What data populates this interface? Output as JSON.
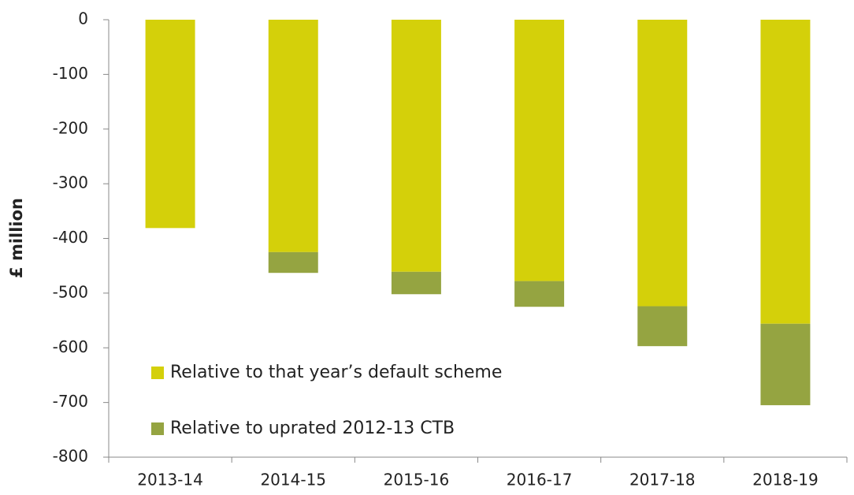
{
  "chart_data": {
    "type": "stacked_bar",
    "y_label": "£ million",
    "categories": [
      "2013-14",
      "2014-15",
      "2015-16",
      "2016-17",
      "2017-18",
      "2018-19"
    ],
    "series": [
      {
        "name": "Relative to that year’s default scheme",
        "color": "#d4d00a",
        "values": [
          -381,
          -425,
          -461,
          -478,
          -524,
          -556
        ]
      },
      {
        "name": "Relative to uprated 2012-13 CTB",
        "color": "#95a441",
        "values": [
          0,
          -38,
          -41,
          -47,
          -73,
          -149
        ]
      }
    ],
    "ylim": [
      -800,
      0
    ],
    "yticks": [
      0,
      -100,
      -200,
      -300,
      -400,
      -500,
      -600,
      -700,
      -800
    ],
    "legend": "lower left"
  }
}
